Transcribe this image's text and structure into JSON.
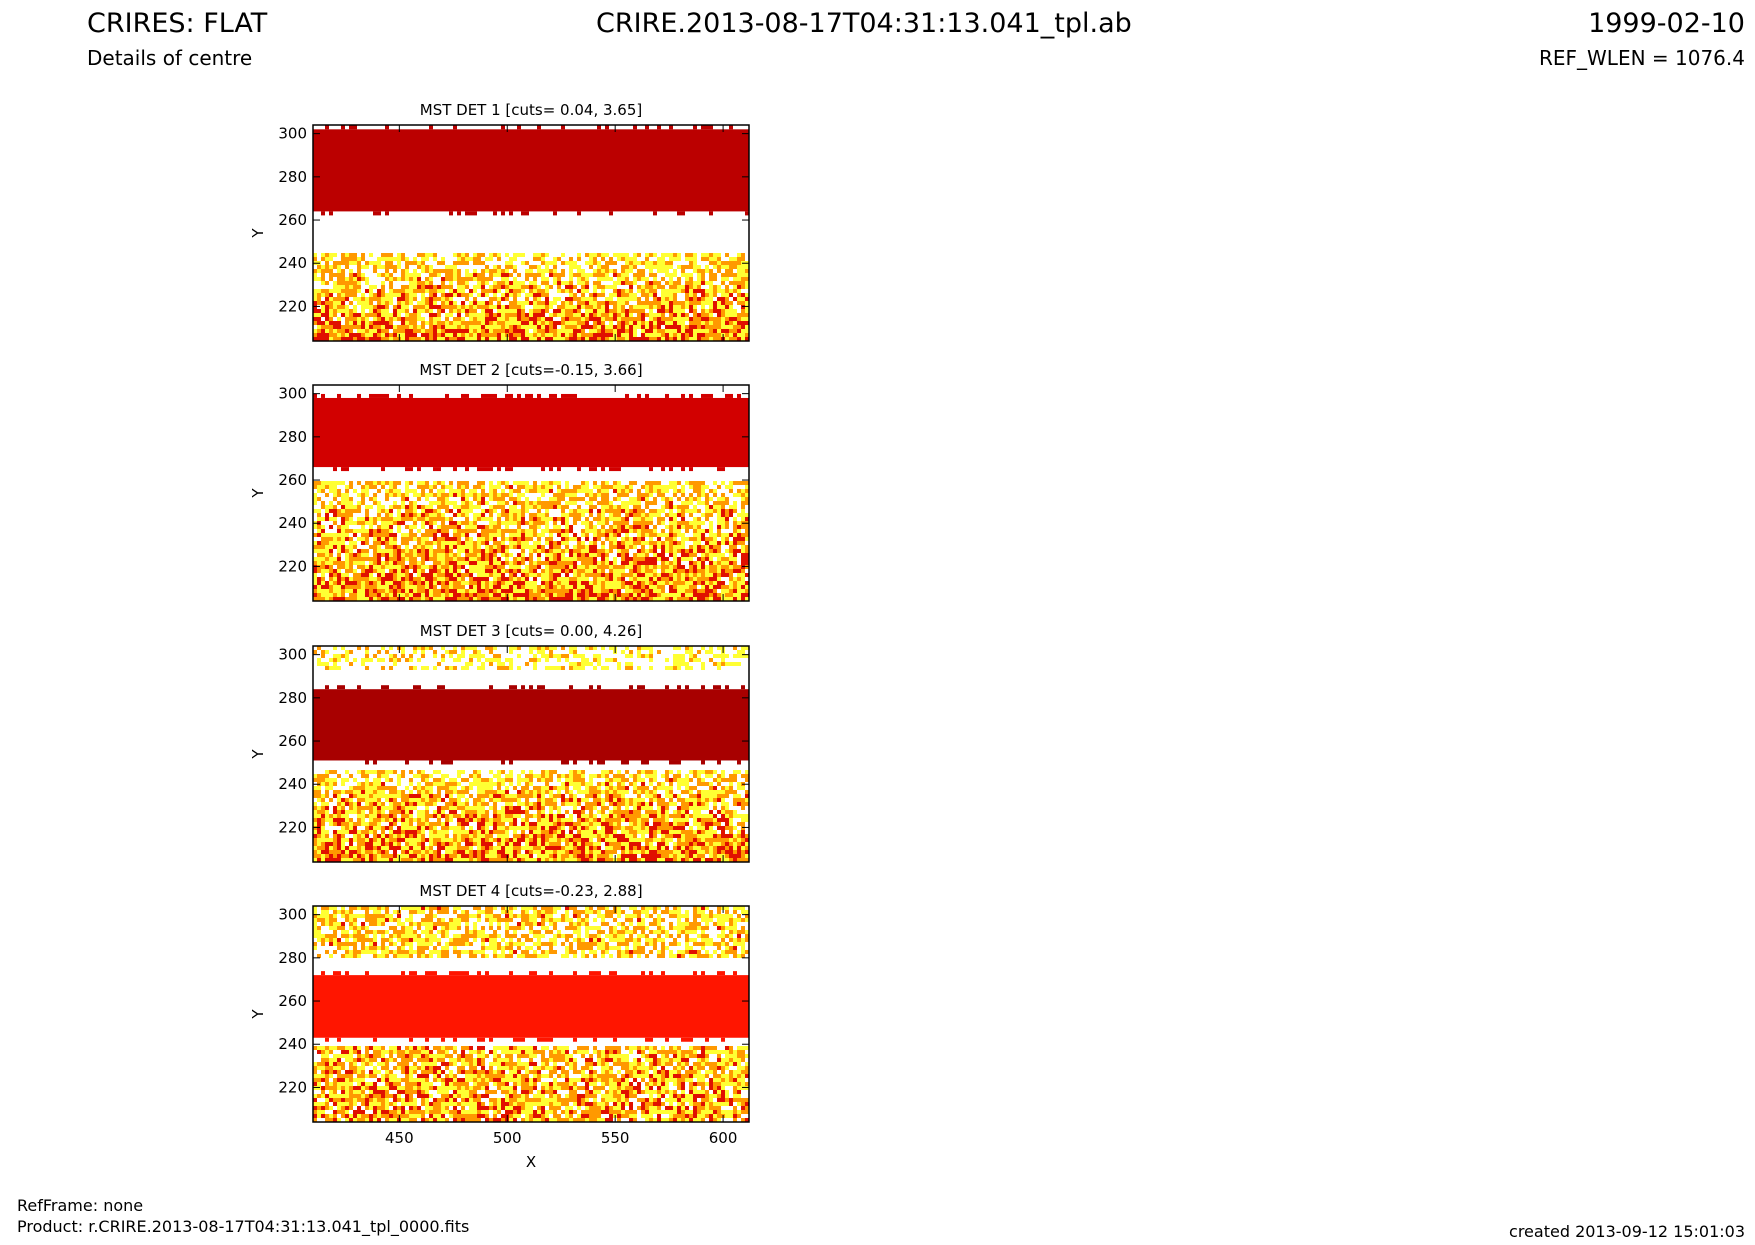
{
  "header": {
    "title": "CRIRES: FLAT",
    "subtitle": "Details of centre",
    "filename": "CRIRE.2013-08-17T04:31:13.041_tpl.ab",
    "date": "1999-02-10",
    "ref_wlen": "REF_WLEN = 1076.4"
  },
  "footer": {
    "refframe": "RefFrame: none",
    "product": "Product: r.CRIRE.2013-08-17T04:31:13.041_tpl_0000.fits",
    "created": "created 2013-09-12 15:01:03"
  },
  "colors": {
    "white": "#ffffff",
    "yellow": "#ffff33",
    "orange": "#ff9900",
    "red": "#e01000",
    "darkred": "#7a0000"
  },
  "chart_data": [
    {
      "type": "heatmap",
      "title": "MST DET 1 [cuts= 0.04, 3.65]",
      "xlabel": "",
      "ylabel": "Y",
      "xlim": [
        410,
        612
      ],
      "ylim": [
        204,
        304
      ],
      "xticks": [],
      "yticks": [
        220,
        240,
        260,
        280,
        300
      ],
      "band": {
        "y_low": 264,
        "y_high": 302,
        "color": "#bb0000"
      },
      "gap_above_band": {
        "y_low": 302,
        "y_high": 304
      },
      "gap_below_band": {
        "y_low": 245,
        "y_high": 264
      },
      "noise": {
        "y_low": 204,
        "y_high": 245,
        "density_top": 0.55,
        "density_bottom": 1.0
      }
    },
    {
      "type": "heatmap",
      "title": "MST DET 2 [cuts=-0.15, 3.66]",
      "xlabel": "",
      "ylabel": "Y",
      "xlim": [
        410,
        612
      ],
      "ylim": [
        204,
        304
      ],
      "xticks": [],
      "yticks": [
        220,
        240,
        260,
        280,
        300
      ],
      "band": {
        "y_low": 266,
        "y_high": 298,
        "color": "#d20000"
      },
      "gap_above_band": {
        "y_low": 298,
        "y_high": 304
      },
      "gap_below_band": {
        "y_low": 260,
        "y_high": 266
      },
      "noise": {
        "y_low": 204,
        "y_high": 260,
        "density_top": 0.6,
        "density_bottom": 1.0
      }
    },
    {
      "type": "heatmap",
      "title": "MST DET 3 [cuts= 0.00, 4.26]",
      "xlabel": "",
      "ylabel": "Y",
      "xlim": [
        410,
        612
      ],
      "ylim": [
        204,
        304
      ],
      "xticks": [],
      "yticks": [
        220,
        240,
        260,
        280,
        300
      ],
      "band": {
        "y_low": 251,
        "y_high": 284,
        "color": "#a80000"
      },
      "gap_above_band": {
        "y_low": 284,
        "y_high": 292
      },
      "gap_below_band": {
        "y_low": 246,
        "y_high": 251
      },
      "noise": {
        "y_low": 204,
        "y_high": 246,
        "density_top": 0.6,
        "density_bottom": 1.0
      },
      "noise_top": {
        "y_low": 292,
        "y_high": 304,
        "density": 0.45
      }
    },
    {
      "type": "heatmap",
      "title": "MST DET 4 [cuts=-0.23, 2.88]",
      "xlabel": "X",
      "ylabel": "Y",
      "xlim": [
        410,
        612
      ],
      "ylim": [
        204,
        304
      ],
      "xticks": [
        450,
        500,
        550,
        600
      ],
      "yticks": [
        220,
        240,
        260,
        280,
        300
      ],
      "band": {
        "y_low": 243,
        "y_high": 272,
        "color": "#ff1500"
      },
      "gap_above_band": {
        "y_low": 272,
        "y_high": 280
      },
      "gap_below_band": {
        "y_low": 240,
        "y_high": 243
      },
      "noise": {
        "y_low": 204,
        "y_high": 240,
        "density_top": 0.75,
        "density_bottom": 0.85
      },
      "noise_top": {
        "y_low": 280,
        "y_high": 304,
        "density": 0.7
      }
    }
  ]
}
